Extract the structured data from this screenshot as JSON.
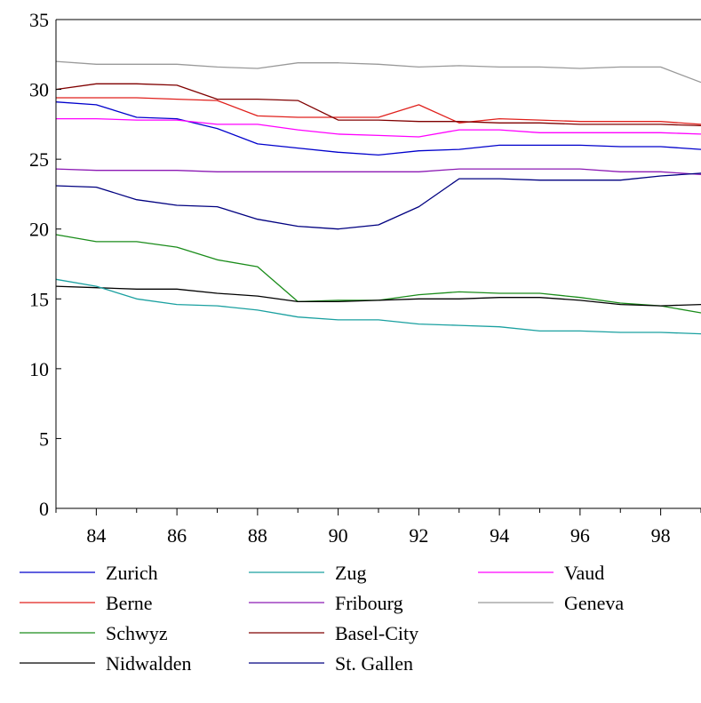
{
  "chart_data": {
    "type": "line",
    "title": "",
    "xlabel": "",
    "ylabel": "",
    "x": [
      83,
      84,
      85,
      86,
      87,
      88,
      89,
      90,
      91,
      92,
      93,
      94,
      95,
      96,
      97,
      98,
      99
    ],
    "xlim": [
      83,
      99
    ],
    "ylim": [
      0,
      35
    ],
    "x_ticks": [
      84,
      86,
      88,
      90,
      92,
      94,
      96,
      98
    ],
    "y_ticks": [
      0,
      5,
      10,
      15,
      20,
      25,
      30,
      35
    ],
    "grid": false,
    "legend_position": "bottom",
    "series": [
      {
        "name": "Zurich",
        "color": "#0000cc",
        "values": [
          29.1,
          28.9,
          28.0,
          27.9,
          27.2,
          26.1,
          25.8,
          25.5,
          25.3,
          25.6,
          25.7,
          26.0,
          26.0,
          26.0,
          25.9,
          25.9,
          25.7
        ]
      },
      {
        "name": "Berne",
        "color": "#e0201c",
        "values": [
          29.4,
          29.4,
          29.4,
          29.3,
          29.2,
          28.1,
          28.0,
          28.0,
          28.0,
          28.9,
          27.6,
          27.9,
          27.8,
          27.7,
          27.7,
          27.7,
          27.5
        ]
      },
      {
        "name": "Schwyz",
        "color": "#1a8c1a",
        "values": [
          19.6,
          19.1,
          19.1,
          18.7,
          17.8,
          17.3,
          14.8,
          14.9,
          14.9,
          15.3,
          15.5,
          15.4,
          15.4,
          15.1,
          14.7,
          14.5,
          14.0
        ]
      },
      {
        "name": "Nidwalden",
        "color": "#000000",
        "values": [
          15.9,
          15.8,
          15.7,
          15.7,
          15.4,
          15.2,
          14.8,
          14.8,
          14.9,
          15.0,
          15.0,
          15.1,
          15.1,
          14.9,
          14.6,
          14.5,
          14.6
        ]
      },
      {
        "name": "Zug",
        "color": "#1aa0a0",
        "values": [
          16.4,
          15.9,
          15.0,
          14.6,
          14.5,
          14.2,
          13.7,
          13.5,
          13.5,
          13.2,
          13.1,
          13.0,
          12.7,
          12.7,
          12.6,
          12.6,
          12.5
        ]
      },
      {
        "name": "Fribourg",
        "color": "#8c1ab4",
        "values": [
          24.3,
          24.2,
          24.2,
          24.2,
          24.1,
          24.1,
          24.1,
          24.1,
          24.1,
          24.1,
          24.3,
          24.3,
          24.3,
          24.3,
          24.1,
          24.1,
          23.9
        ]
      },
      {
        "name": "Basel-City",
        "color": "#800000",
        "values": [
          30.0,
          30.4,
          30.4,
          30.3,
          29.3,
          29.3,
          29.2,
          27.8,
          27.8,
          27.7,
          27.7,
          27.6,
          27.6,
          27.5,
          27.5,
          27.5,
          27.4
        ]
      },
      {
        "name": "St. Gallen",
        "color": "#000080",
        "values": [
          23.1,
          23.0,
          22.1,
          21.7,
          21.6,
          20.7,
          20.2,
          20.0,
          20.3,
          21.6,
          23.6,
          23.6,
          23.5,
          23.5,
          23.5,
          23.8,
          24.0
        ]
      },
      {
        "name": "Vaud",
        "color": "#ff00ff",
        "values": [
          27.9,
          27.9,
          27.8,
          27.8,
          27.5,
          27.5,
          27.1,
          26.8,
          26.7,
          26.6,
          27.1,
          27.1,
          26.9,
          26.9,
          26.9,
          26.9,
          26.8
        ]
      },
      {
        "name": "Geneva",
        "color": "#999999",
        "values": [
          32.0,
          31.8,
          31.8,
          31.8,
          31.6,
          31.5,
          31.9,
          31.9,
          31.8,
          31.6,
          31.7,
          31.6,
          31.6,
          31.5,
          31.6,
          31.6,
          30.5
        ]
      }
    ],
    "legend_rows": [
      [
        "Zurich",
        "Zug",
        "Vaud"
      ],
      [
        "Berne",
        "Fribourg",
        "Geneva"
      ],
      [
        "Schwyz",
        "Basel-City"
      ],
      [
        "Nidwalden",
        "St. Gallen"
      ]
    ]
  }
}
